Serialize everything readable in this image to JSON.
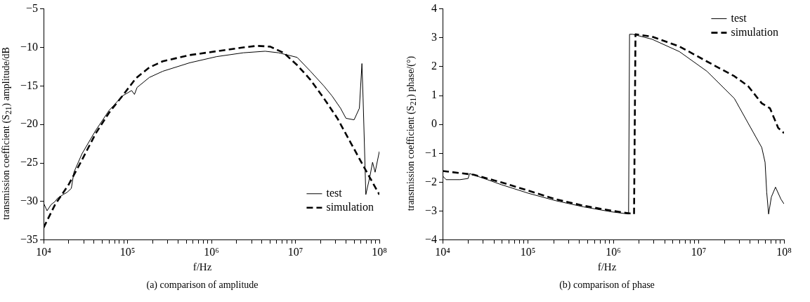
{
  "chart_data": [
    {
      "type": "line",
      "title": "(a) comparison of amplitude",
      "xlabel": "f/Hz",
      "ylabel": "transmission coefficient (S$_{21}$) amplitude/dB",
      "log": "x",
      "grid": false,
      "legend": "bottom right",
      "marker": "none",
      "xlim": [
        10000,
        100000000
      ],
      "xticks": [
        {
          "value": 10000,
          "label": "10⁴"
        },
        {
          "value": 20000,
          "label": null
        },
        {
          "value": 30000,
          "label": null
        },
        {
          "value": 40000,
          "label": null
        },
        {
          "value": 50000,
          "label": null
        },
        {
          "value": 60000,
          "label": null
        },
        {
          "value": 70000,
          "label": null
        },
        {
          "value": 80000,
          "label": null
        },
        {
          "value": 90000,
          "label": null
        },
        {
          "value": 100000,
          "label": "10⁵"
        },
        {
          "value": 200000,
          "label": null
        },
        {
          "value": 300000,
          "label": null
        },
        {
          "value": 400000,
          "label": null
        },
        {
          "value": 500000,
          "label": null
        },
        {
          "value": 600000,
          "label": null
        },
        {
          "value": 700000,
          "label": null
        },
        {
          "value": 800000,
          "label": null
        },
        {
          "value": 900000,
          "label": null
        },
        {
          "value": 1000000,
          "label": "10⁶"
        },
        {
          "value": 2000000,
          "label": null
        },
        {
          "value": 3000000,
          "label": null
        },
        {
          "value": 4000000,
          "label": null
        },
        {
          "value": 5000000,
          "label": null
        },
        {
          "value": 6000000,
          "label": null
        },
        {
          "value": 7000000,
          "label": null
        },
        {
          "value": 8000000,
          "label": null
        },
        {
          "value": 9000000,
          "label": null
        },
        {
          "value": 10000000,
          "label": "10⁷"
        },
        {
          "value": 20000000,
          "label": null
        },
        {
          "value": 30000000,
          "label": null
        },
        {
          "value": 40000000,
          "label": null
        },
        {
          "value": 50000000,
          "label": null
        },
        {
          "value": 60000000,
          "label": null
        },
        {
          "value": 70000000,
          "label": null
        },
        {
          "value": 80000000,
          "label": null
        },
        {
          "value": 90000000,
          "label": null
        },
        {
          "value": 100000000,
          "label": "10⁸"
        }
      ],
      "ylim": [
        -35,
        -5
      ],
      "yticks": [
        -35,
        -30,
        -25,
        -20,
        -15,
        -10,
        -5
      ],
      "series": [
        {
          "name": "test",
          "color": "#000000",
          "line_style": "solid",
          "x": [
            10000,
            11000,
            12300,
            13700,
            14600,
            17100,
            19100,
            21400,
            23000,
            28700,
            41600,
            60100,
            86900,
            112000,
            121000,
            130000,
            182000,
            263000,
            550000,
            1150000,
            2400000,
            4360000,
            6300000,
            10500000,
            15100000,
            21800000,
            27300000,
            34500000,
            40000000,
            50000000,
            57800000,
            62000000,
            64000000,
            69000000,
            77000000,
            83000000,
            89000000,
            100000000
          ],
          "values": [
            -30.2,
            -31.2,
            -30.4,
            -30.0,
            -29.6,
            -29.1,
            -28.8,
            -28.3,
            -26.2,
            -23.8,
            -20.8,
            -18.2,
            -16.3,
            -15.6,
            -16.1,
            -15.2,
            -13.9,
            -13.1,
            -12.0,
            -11.2,
            -10.7,
            -10.5,
            -10.7,
            -11.3,
            -13.1,
            -15.0,
            -16.3,
            -17.9,
            -19.2,
            -19.4,
            -17.9,
            -12.1,
            -16.6,
            -29.1,
            -26.8,
            -24.9,
            -26.2,
            -23.5
          ]
        },
        {
          "name": "simulation",
          "color": "#000000",
          "line_style": "dashed",
          "x": [
            10000,
            13700,
            19900,
            28700,
            41600,
            60100,
            86900,
            126000,
            182000,
            263000,
            550000,
            1150000,
            2400000,
            3470000,
            5010000,
            7240000,
            10500000,
            15100000,
            21800000,
            31600000,
            45700000,
            66100000,
            100000000
          ],
          "values": [
            -33.4,
            -30.4,
            -27.8,
            -24.6,
            -21.2,
            -18.5,
            -16.3,
            -14.0,
            -12.6,
            -11.8,
            -11.0,
            -10.5,
            -10.0,
            -9.8,
            -9.9,
            -10.7,
            -12.3,
            -14.2,
            -16.6,
            -19.2,
            -22.4,
            -25.6,
            -29.1
          ]
        }
      ]
    },
    {
      "type": "line",
      "title": "(b) comparison of phase",
      "xlabel": "f/Hz",
      "ylabel": "transmission coefficient (S$_{21}$) phase/(°)",
      "log": "x",
      "grid": false,
      "legend": "top right",
      "marker": "none",
      "xlim": [
        10000,
        100000000
      ],
      "xticks": [
        {
          "value": 10000,
          "label": "10⁴"
        },
        {
          "value": 20000,
          "label": null
        },
        {
          "value": 30000,
          "label": null
        },
        {
          "value": 40000,
          "label": null
        },
        {
          "value": 50000,
          "label": null
        },
        {
          "value": 60000,
          "label": null
        },
        {
          "value": 70000,
          "label": null
        },
        {
          "value": 80000,
          "label": null
        },
        {
          "value": 90000,
          "label": null
        },
        {
          "value": 100000,
          "label": "10⁵"
        },
        {
          "value": 200000,
          "label": null
        },
        {
          "value": 300000,
          "label": null
        },
        {
          "value": 400000,
          "label": null
        },
        {
          "value": 500000,
          "label": null
        },
        {
          "value": 600000,
          "label": null
        },
        {
          "value": 700000,
          "label": null
        },
        {
          "value": 800000,
          "label": null
        },
        {
          "value": 900000,
          "label": null
        },
        {
          "value": 1000000,
          "label": "10⁶"
        },
        {
          "value": 2000000,
          "label": null
        },
        {
          "value": 3000000,
          "label": null
        },
        {
          "value": 4000000,
          "label": null
        },
        {
          "value": 5000000,
          "label": null
        },
        {
          "value": 6000000,
          "label": null
        },
        {
          "value": 7000000,
          "label": null
        },
        {
          "value": 8000000,
          "label": null
        },
        {
          "value": 9000000,
          "label": null
        },
        {
          "value": 10000000,
          "label": "10⁷"
        },
        {
          "value": 20000000,
          "label": null
        },
        {
          "value": 30000000,
          "label": null
        },
        {
          "value": 40000000,
          "label": null
        },
        {
          "value": 50000000,
          "label": null
        },
        {
          "value": 60000000,
          "label": null
        },
        {
          "value": 70000000,
          "label": null
        },
        {
          "value": 80000000,
          "label": null
        },
        {
          "value": 90000000,
          "label": null
        },
        {
          "value": 100000000,
          "label": "10⁸"
        }
      ],
      "ylim": [
        -4,
        4
      ],
      "yticks": [
        -4,
        -3,
        -2,
        -1,
        0,
        1,
        2,
        3,
        4
      ],
      "series": [
        {
          "name": "test",
          "color": "#000000",
          "line_style": "solid",
          "x": [
            10000,
            11000,
            16000,
            19900,
            20700,
            33500,
            48400,
            101000,
            113000,
            213000,
            446000,
            936000,
            1510000,
            1550000,
            1690000,
            2840000,
            5950000,
            12500000,
            26200000,
            37900000,
            54900000,
            60000000,
            62700000,
            66000000,
            71100000,
            79500000,
            92200000,
            100000000
          ],
          "values": [
            -1.78,
            -1.91,
            -1.91,
            -1.87,
            -1.7,
            -1.91,
            -2.08,
            -2.38,
            -2.42,
            -2.64,
            -2.85,
            -3.02,
            -3.1,
            3.12,
            3.12,
            2.95,
            2.52,
            1.84,
            0.9,
            0.05,
            -0.8,
            -1.31,
            -2.34,
            -3.1,
            -2.51,
            -2.17,
            -2.59,
            -2.75
          ]
        },
        {
          "name": "simulation",
          "color": "#000000",
          "line_style": "dashed",
          "x": [
            10000,
            23100,
            48400,
            101000,
            213000,
            446000,
            936000,
            1750000,
            1820000,
            2840000,
            5950000,
            12500000,
            26200000,
            37900000,
            54900000,
            68500000,
            85500000,
            100000000
          ],
          "values": [
            -1.61,
            -1.74,
            -2.0,
            -2.29,
            -2.59,
            -2.81,
            -2.98,
            -3.1,
            3.12,
            3.04,
            2.7,
            2.18,
            1.67,
            1.33,
            0.73,
            0.56,
            -0.12,
            -0.3
          ]
        }
      ]
    }
  ]
}
